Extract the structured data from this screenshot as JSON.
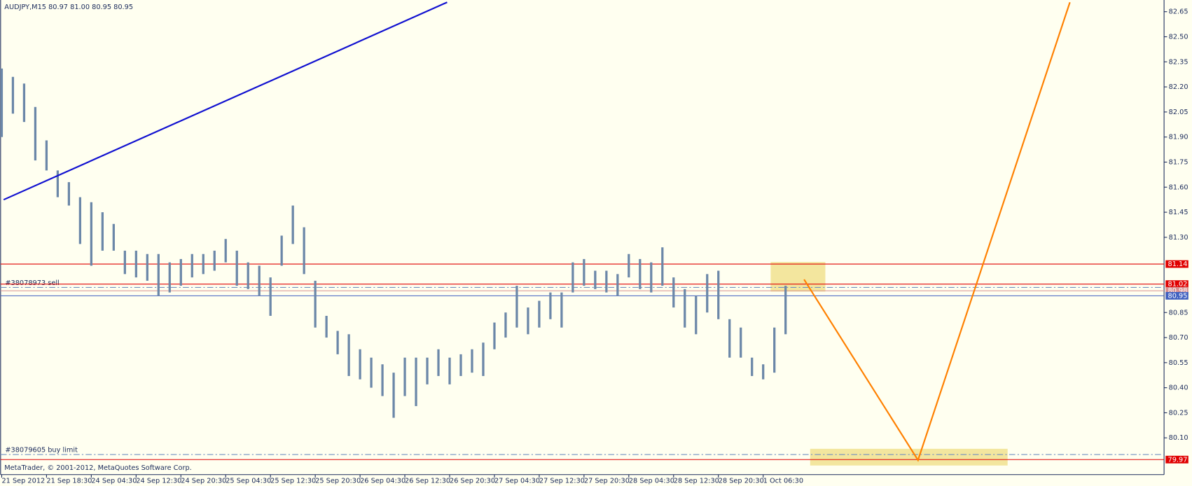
{
  "chart_data": {
    "type": "range-bar",
    "title": "AUDJPY,M15  80.97 81.00 80.95 80.95",
    "footer": "MetaTrader, © 2001-2012, MetaQuotes Software Corp.",
    "color": "#6b87a8",
    "xlim": [
      -0.1,
      103.8
    ],
    "ylim": [
      79.88,
      82.72
    ],
    "high": [
      82.31,
      82.26,
      82.22,
      82.08,
      81.88,
      81.7,
      81.63,
      81.54,
      81.51,
      81.45,
      81.38,
      81.22,
      81.22,
      81.2,
      81.2,
      81.15,
      81.17,
      81.2,
      81.2,
      81.22,
      81.29,
      81.22,
      81.15,
      81.13,
      81.06,
      81.31,
      81.49,
      81.36,
      81.04,
      80.83,
      80.74,
      80.72,
      80.63,
      80.58,
      80.54,
      80.49,
      80.58,
      80.58,
      80.58,
      80.63,
      80.58,
      80.6,
      80.63,
      80.67,
      80.79,
      80.85,
      81.01,
      80.88,
      80.92,
      80.97,
      80.97,
      81.15,
      81.17,
      81.1,
      81.1,
      81.08,
      81.2,
      81.17,
      81.15,
      81.24,
      81.06,
      80.99,
      80.95,
      81.08,
      81.1,
      80.81,
      80.76,
      80.58,
      80.54,
      80.76,
      81.01
    ],
    "low": [
      81.9,
      82.04,
      81.99,
      81.76,
      81.7,
      81.54,
      81.49,
      81.26,
      81.13,
      81.22,
      81.22,
      81.08,
      81.06,
      81.04,
      80.95,
      80.97,
      81.01,
      81.06,
      81.08,
      81.1,
      81.15,
      81.01,
      80.99,
      80.95,
      80.83,
      81.13,
      81.26,
      81.08,
      80.76,
      80.7,
      80.6,
      80.47,
      80.45,
      80.4,
      80.35,
      80.22,
      80.35,
      80.29,
      80.42,
      80.47,
      80.42,
      80.47,
      80.49,
      80.47,
      80.63,
      80.7,
      80.76,
      80.72,
      80.76,
      80.81,
      80.76,
      80.97,
      81.01,
      80.99,
      80.97,
      80.95,
      81.06,
      80.99,
      80.97,
      81.01,
      80.88,
      80.76,
      80.72,
      80.85,
      80.81,
      80.58,
      80.58,
      80.47,
      80.45,
      80.49,
      80.72
    ],
    "yticks": [
      82.65,
      {
        "value": 82.5,
        "label": "82.50"
      },
      82.35,
      {
        "value": 82.2,
        "label": "82.20"
      },
      82.05,
      {
        "value": 81.9,
        "label": "81.90"
      },
      81.75,
      {
        "value": 81.6,
        "label": "81.60"
      },
      81.45,
      {
        "value": 81.3,
        "label": "81.30"
      },
      80.85,
      {
        "value": 80.7,
        "label": "80.70"
      },
      80.55,
      {
        "value": 80.4,
        "label": "80.40"
      },
      80.25,
      {
        "value": 80.1,
        "label": "80.10"
      }
    ],
    "xticks": [
      {
        "value": 0,
        "label": "21 Sep 2012"
      },
      {
        "value": 4,
        "label": "21 Sep 18:30"
      },
      {
        "value": 8,
        "label": "24 Sep 04:30"
      },
      {
        "value": 12,
        "label": "24 Sep 12:30"
      },
      {
        "value": 16,
        "label": "24 Sep 20:30"
      },
      {
        "value": 20,
        "label": "25 Sep 04:30"
      },
      {
        "value": 24,
        "label": "25 Sep 12:30"
      },
      {
        "value": 28,
        "label": "25 Sep 20:30"
      },
      {
        "value": 32,
        "label": "26 Sep 04:30"
      },
      {
        "value": 36,
        "label": "26 Sep 12:30"
      },
      {
        "value": 40,
        "label": "26 Sep 20:30"
      },
      {
        "value": 44,
        "label": "27 Sep 04:30"
      },
      {
        "value": 48,
        "label": "27 Sep 12:30"
      },
      {
        "value": 52,
        "label": "27 Sep 20:30"
      },
      {
        "value": 56,
        "label": "28 Sep 04:30"
      },
      {
        "value": 60,
        "label": "28 Sep 12:30"
      },
      {
        "value": 64,
        "label": "28 Sep 20:30"
      },
      {
        "value": 68,
        "label": "1 Oct 06:30"
      }
    ],
    "levels": [
      {
        "value": 81.14,
        "color": "#e00000"
      },
      {
        "value": 81.02,
        "color": "#e00000"
      },
      {
        "value": 80.98,
        "color": "#d89090"
      },
      {
        "value": 80.95,
        "color": "#4060c0"
      },
      {
        "value": 79.97,
        "color": "#e00000"
      }
    ],
    "orders": [
      {
        "label": "#38078973 sell",
        "value": 81.0
      },
      {
        "label": "#38079605 buy limit",
        "value": 80.0
      }
    ]
  }
}
